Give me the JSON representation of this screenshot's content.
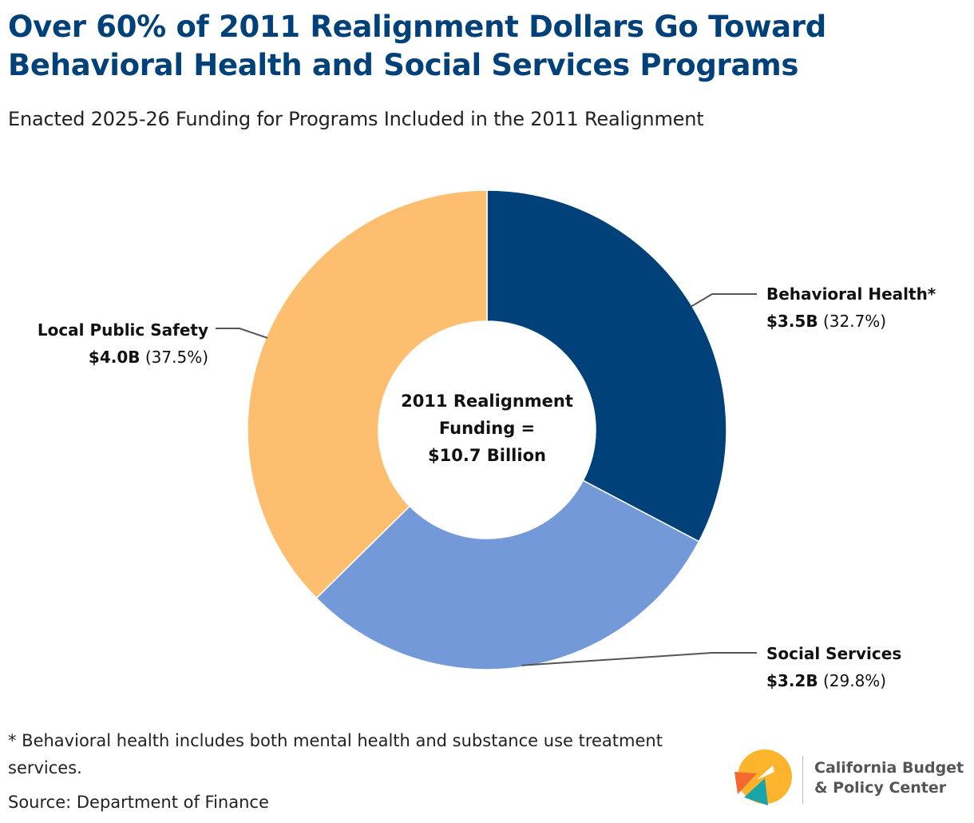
{
  "header": {
    "title_line1": "Over 60% of 2011 Realignment Dollars Go Toward",
    "title_line2": "Behavioral Health and Social Services Programs",
    "subtitle": "Enacted 2025-26 Funding for Programs Included in the 2011 Realignment"
  },
  "chart_data": {
    "type": "pie",
    "donut": true,
    "title": "Over 60% of 2011 Realignment Dollars Go Toward Behavioral Health and Social Services Programs",
    "subtitle": "Enacted 2025-26 Funding for Programs Included in the 2011 Realignment",
    "center_label": [
      "2011 Realignment",
      "Funding =",
      "$10.7 Billion"
    ],
    "total": 10.7,
    "units": "billions of dollars",
    "slices": [
      {
        "name": "Behavioral Health*",
        "value": 3.5,
        "value_label": "$3.5B",
        "percent": 32.7,
        "percent_label": "(32.7%)",
        "color": "#004179"
      },
      {
        "name": "Social Services",
        "value": 3.2,
        "value_label": "$3.2B",
        "percent": 29.8,
        "percent_label": "(29.8%)",
        "color": "#7399d9"
      },
      {
        "name": "Local Public Safety",
        "value": 4.0,
        "value_label": "$4.0B",
        "percent": 37.5,
        "percent_label": "(37.5%)",
        "color": "#fdbf6f"
      }
    ],
    "start_angle_deg": 0,
    "direction": "clockwise"
  },
  "footer": {
    "footnote": "* Behavioral health includes both mental health and substance use treatment services.",
    "source": "Source: Department of Finance"
  },
  "logo": {
    "line1": "California Budget",
    "line2": "& Policy Center",
    "colors": {
      "sun": "#fbb42c",
      "arrow_orange": "#f26a2e",
      "arrow_teal": "#1aa3a8"
    }
  }
}
